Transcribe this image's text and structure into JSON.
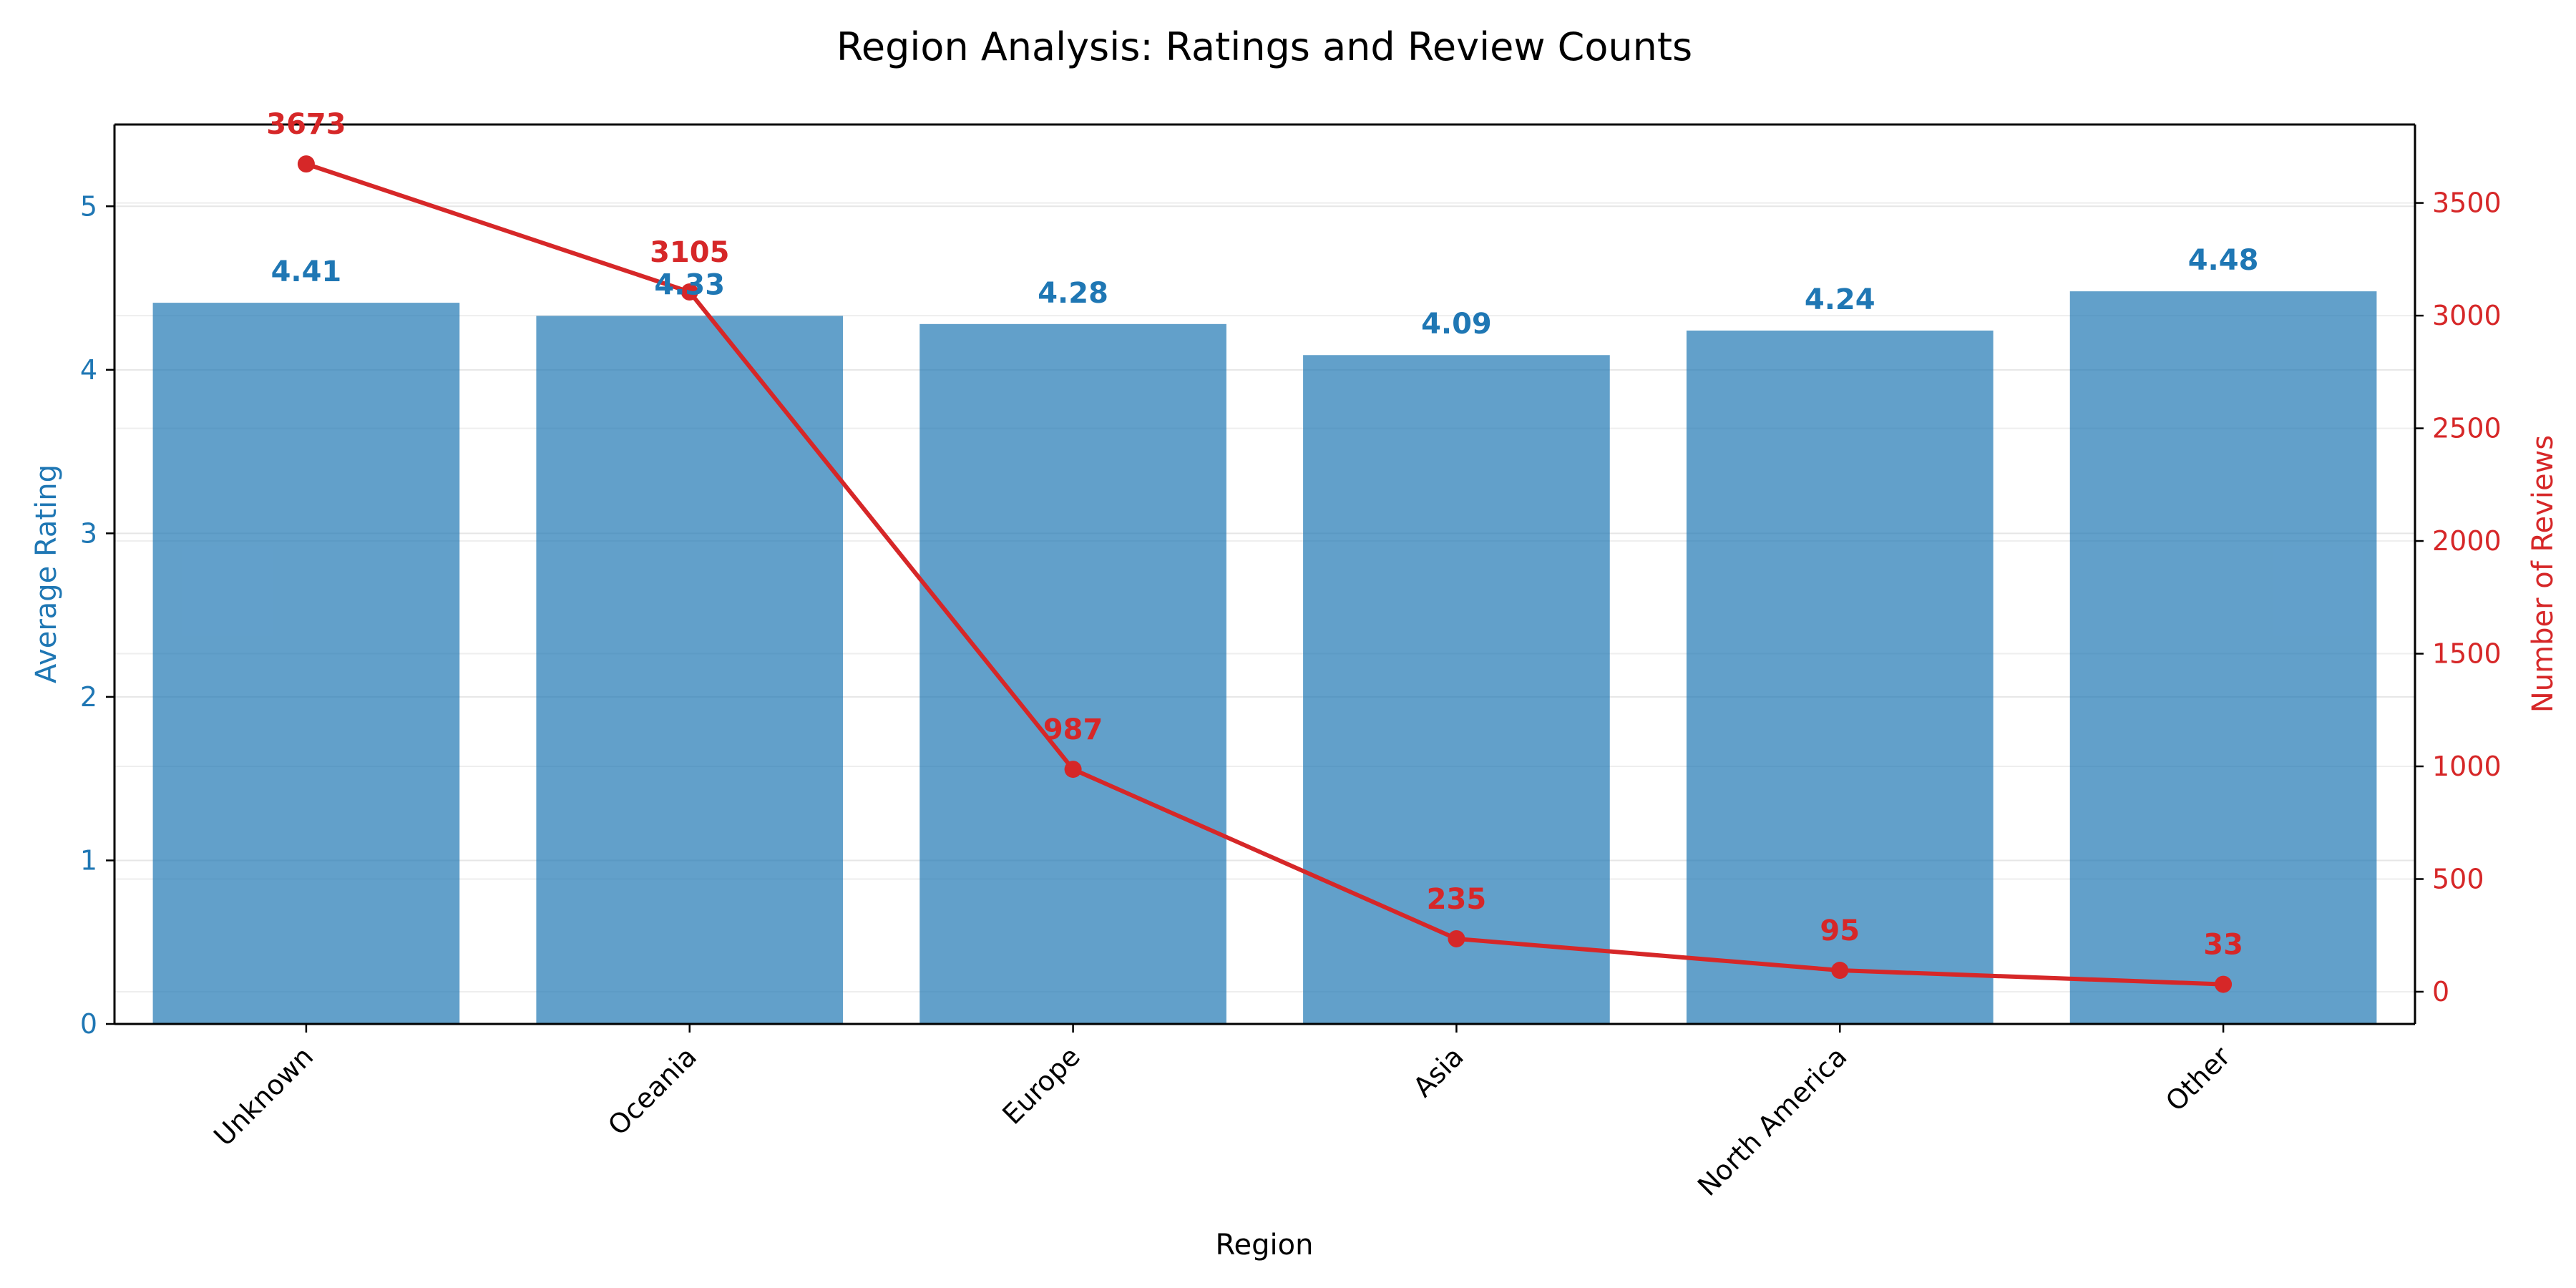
{
  "chart_data": {
    "type": "bar+line",
    "title": "Region Analysis: Ratings and Review Counts",
    "xlabel": "Region",
    "ylabel_left": "Average Rating",
    "ylabel_right": "Number of Reviews",
    "categories": [
      "Unknown",
      "Oceania",
      "Europe",
      "Asia",
      "North America",
      "Other"
    ],
    "bar_series": {
      "name": "Average Rating",
      "values": [
        4.41,
        4.33,
        4.28,
        4.09,
        4.24,
        4.48
      ],
      "labels": [
        "4.41",
        "4.33",
        "4.28",
        "4.09",
        "4.24",
        "4.48"
      ],
      "color": "#1f77b4"
    },
    "line_series": {
      "name": "Number of Reviews",
      "values": [
        3673,
        3105,
        987,
        235,
        95,
        33
      ],
      "labels": [
        "3673",
        "3105",
        "987",
        "235",
        "95",
        "33"
      ],
      "color": "#d62728"
    },
    "ylim_left": [
      0,
      5.5
    ],
    "yticks_left": [
      0,
      1,
      2,
      3,
      4,
      5
    ],
    "ylim_right": [
      -143,
      3848
    ],
    "yticks_right": [
      0,
      500,
      1000,
      1500,
      2000,
      2500,
      3000,
      3500
    ],
    "grid": true,
    "legend": "none"
  }
}
